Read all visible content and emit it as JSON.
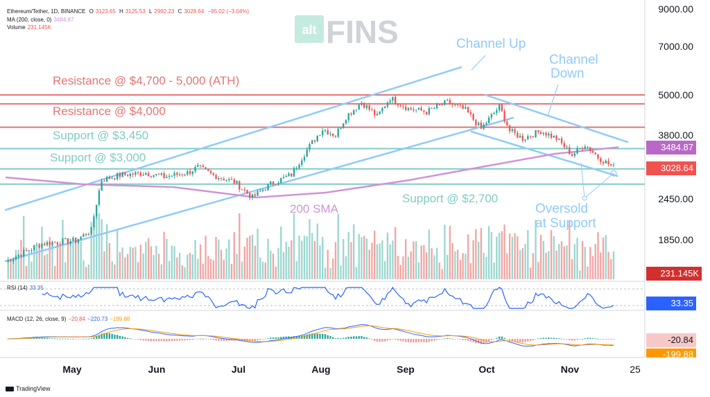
{
  "header": {
    "symbol": "Ethereum/Tether, 1D, BINANCE",
    "ohlc": {
      "o_label": "O",
      "o": "3123.65",
      "h_label": "H",
      "h": "3125.53",
      "l_label": "L",
      "l": "2992.23",
      "c_label": "C",
      "c": "3028.64",
      "change": "−95.02 (−3.04%)"
    },
    "ma": {
      "label": "MA (200, close, 0)",
      "value": "3484.87"
    },
    "volume": {
      "label": "Volume",
      "value": "231.145K"
    }
  },
  "watermark": {
    "prefix": "alt",
    "name": "FINS"
  },
  "annotations": {
    "channel_up": "Channel Up",
    "channel_down_1": "Channel",
    "channel_down_2": "Down",
    "resistance_ath": "Resistance @ $4,700 - 5,000 (ATH)",
    "resistance_4000": "Resistance @ $4,000",
    "support_3450": "Support @ $3,450",
    "support_3000": "Support @ $3,000",
    "support_2700": "Support @ $2,700",
    "sma": "200 SMA",
    "oversold_1": "Oversold",
    "oversold_2": "at Support"
  },
  "price_axis": [
    "9000.00",
    "7000.00",
    "5000.00",
    "3800.00",
    "2450.00",
    "1850.00"
  ],
  "badges": {
    "ma": "3484.87",
    "price": "3028.64",
    "volume": "231.145K",
    "rsi": "33.35",
    "macd": "-20.84",
    "macd_signal": "-199.88"
  },
  "rsi_legend": {
    "label": "RSI (14)",
    "value": "33.35"
  },
  "macd_legend": {
    "label": "MACD (12, 26, close, 9)",
    "hist": "−20.84",
    "macd": "−220.73",
    "signal": "−199.88"
  },
  "time_axis": [
    "May",
    "Jun",
    "Jul",
    "Aug",
    "Sep",
    "Oct",
    "Nov",
    "25"
  ],
  "footer": {
    "brand": "TradingView"
  },
  "colors": {
    "up": "#26a69a",
    "down": "#ef5350",
    "resistance": "#e57373",
    "support": "#80cbc4",
    "channel": "#90caf9",
    "sma": "#ce93d8",
    "rsi": "#2962ff",
    "macd_signal": "#ff9800"
  },
  "chart_data": {
    "type": "candlestick",
    "title": "Ethereum/Tether, 1D, BINANCE",
    "x_range": [
      "2024-04-01",
      "2024-11-25"
    ],
    "x_ticks": [
      "May",
      "Jun",
      "Jul",
      "Aug",
      "Sep",
      "Oct",
      "Nov",
      "25"
    ],
    "y_scale": "log",
    "y_ticks": [
      9000,
      7000,
      5000,
      3800,
      2450,
      1850
    ],
    "levels": [
      {
        "label": "Resistance @ $4,700 - 5,000 (ATH)",
        "values": [
          5000,
          4700
        ]
      },
      {
        "label": "Resistance @ $4,000",
        "value": 4000
      },
      {
        "label": "Support @ $3,450",
        "value": 3450
      },
      {
        "label": "Support @ $3,000",
        "value": 3000
      },
      {
        "label": "Support @ $2,700",
        "value": 2700
      }
    ],
    "price_path": [
      [
        "2024-04-01",
        1580
      ],
      [
        "2024-04-15",
        1790
      ],
      [
        "2024-04-28",
        1830
      ],
      [
        "2024-05-04",
        1960
      ],
      [
        "2024-05-08",
        2780
      ],
      [
        "2024-05-15",
        2870
      ],
      [
        "2024-05-25",
        2920
      ],
      [
        "2024-06-01",
        2840
      ],
      [
        "2024-06-10",
        2920
      ],
      [
        "2024-06-14",
        3030
      ],
      [
        "2024-06-20",
        2870
      ],
      [
        "2024-06-28",
        2740
      ],
      [
        "2024-07-05",
        2460
      ],
      [
        "2024-07-12",
        2700
      ],
      [
        "2024-07-20",
        2880
      ],
      [
        "2024-07-26",
        3420
      ],
      [
        "2024-08-01",
        3950
      ],
      [
        "2024-08-06",
        3780
      ],
      [
        "2024-08-10",
        4300
      ],
      [
        "2024-08-16",
        4750
      ],
      [
        "2024-08-22",
        4300
      ],
      [
        "2024-08-27",
        4900
      ],
      [
        "2024-09-03",
        4550
      ],
      [
        "2024-09-10",
        4450
      ],
      [
        "2024-09-18",
        4750
      ],
      [
        "2024-09-25",
        4500
      ],
      [
        "2024-10-01",
        3950
      ],
      [
        "2024-10-08",
        4600
      ],
      [
        "2024-10-12",
        3900
      ],
      [
        "2024-10-17",
        3700
      ],
      [
        "2024-10-24",
        3900
      ],
      [
        "2024-10-30",
        3700
      ],
      [
        "2024-11-05",
        3300
      ],
      [
        "2024-11-10",
        3550
      ],
      [
        "2024-11-15",
        3250
      ],
      [
        "2024-11-21",
        3030
      ]
    ],
    "ma200": {
      "label": "200 SMA",
      "last": 3484.87
    },
    "last_close": 3028.64,
    "last_volume": "231.145K",
    "rsi": {
      "label": "RSI (14)",
      "last": 33.35
    },
    "macd": {
      "label": "MACD (12, 26, close, 9)",
      "histogram": -20.84,
      "macd": -220.73,
      "signal": -199.88
    }
  }
}
